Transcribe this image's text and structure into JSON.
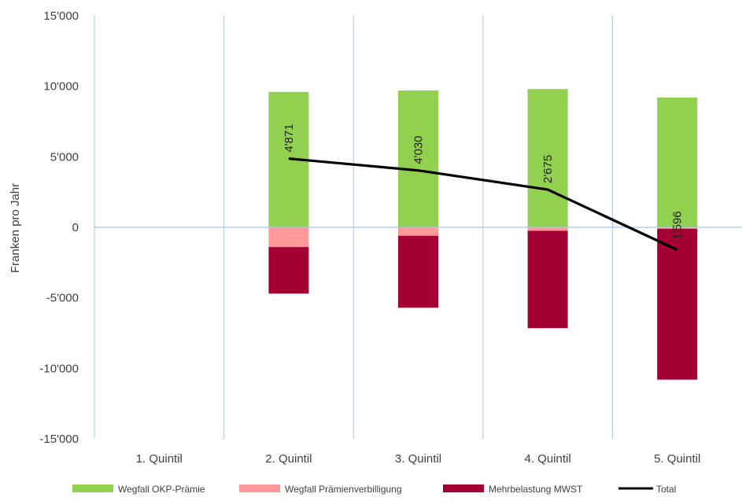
{
  "chart_data": {
    "type": "bar",
    "stacked": true,
    "title": "",
    "xlabel": "",
    "ylabel": "Franken pro Jahr",
    "ylim": [
      -15000,
      15000
    ],
    "yticks": [
      15000,
      10000,
      5000,
      0,
      -5000,
      -10000,
      -15000
    ],
    "ytick_labels": [
      "15'000",
      "10'000",
      "5'000",
      "0",
      "-5'000",
      "-10'000",
      "-15'000"
    ],
    "categories": [
      "1. Quintil",
      "2. Quintil",
      "3. Quintil",
      "4. Quintil",
      "5. Quintil"
    ],
    "grid": "vertical",
    "legend_position": "bottom",
    "series": [
      {
        "name": "Wegfall OKP-Prämie",
        "kind": "bar",
        "color": "#92D050",
        "values": [
          0,
          9600,
          9700,
          9800,
          9200
        ]
      },
      {
        "name": "Wegfall Prämienverbilligung",
        "kind": "bar",
        "color": "#FF9999",
        "values": [
          0,
          -1400,
          -600,
          -250,
          -100
        ]
      },
      {
        "name": "Mehrbelastung MWST",
        "kind": "bar",
        "color": "#A50034",
        "values": [
          0,
          -3300,
          -5100,
          -6900,
          -10700
        ]
      },
      {
        "name": "Total",
        "kind": "line",
        "color": "#000000",
        "values": [
          null,
          4871,
          4030,
          2675,
          -1596
        ]
      }
    ],
    "data_labels": [
      "",
      "4'871",
      "4'030",
      "2'675",
      "-1'596"
    ]
  }
}
